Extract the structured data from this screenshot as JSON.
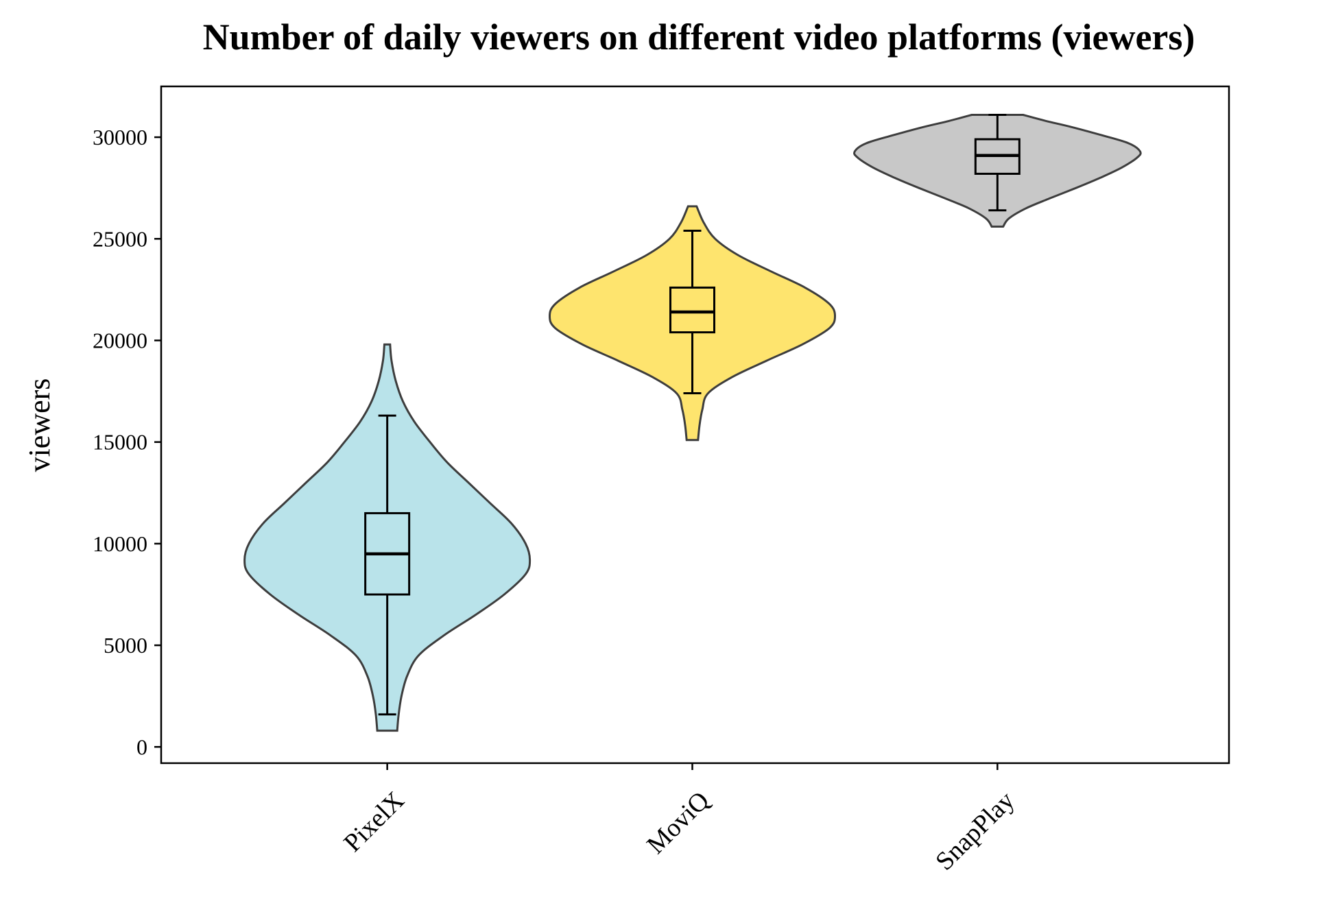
{
  "chart_data": {
    "type": "violin",
    "title": "Number of daily viewers on different video platforms (viewers)",
    "xlabel": "",
    "ylabel": "viewers",
    "ylim": [
      -800,
      32500
    ],
    "yticks": [
      0,
      5000,
      10000,
      15000,
      20000,
      25000,
      30000
    ],
    "grid": false,
    "categories": [
      "PixelX",
      "MoviQ",
      "SnapPlay"
    ],
    "series": [
      {
        "category": "PixelX",
        "color": "#b9e3ea",
        "min": 800,
        "max": 19800,
        "box": {
          "whisker_low": 1600,
          "q1": 7500,
          "median": 9500,
          "q3": 11500,
          "whisker_high": 16300
        },
        "density_profile": [
          [
            800,
            0.07
          ],
          [
            1600,
            0.08
          ],
          [
            2500,
            0.1
          ],
          [
            3500,
            0.14
          ],
          [
            4500,
            0.22
          ],
          [
            5500,
            0.4
          ],
          [
            6500,
            0.62
          ],
          [
            7500,
            0.82
          ],
          [
            8500,
            0.97
          ],
          [
            9200,
            1.0
          ],
          [
            10000,
            0.97
          ],
          [
            11000,
            0.87
          ],
          [
            12000,
            0.72
          ],
          [
            13000,
            0.57
          ],
          [
            14000,
            0.42
          ],
          [
            15000,
            0.3
          ],
          [
            16000,
            0.19
          ],
          [
            17000,
            0.11
          ],
          [
            18000,
            0.06
          ],
          [
            19000,
            0.03
          ],
          [
            19800,
            0.02
          ]
        ]
      },
      {
        "category": "MoviQ",
        "color": "#fee46e",
        "min": 15100,
        "max": 26600,
        "box": {
          "whisker_low": 17400,
          "q1": 20400,
          "median": 21400,
          "q3": 22600,
          "whisker_high": 25400
        },
        "density_profile": [
          [
            15100,
            0.04
          ],
          [
            15800,
            0.05
          ],
          [
            16600,
            0.07
          ],
          [
            17400,
            0.11
          ],
          [
            18200,
            0.28
          ],
          [
            19000,
            0.52
          ],
          [
            19800,
            0.77
          ],
          [
            20600,
            0.96
          ],
          [
            21200,
            1.0
          ],
          [
            21800,
            0.96
          ],
          [
            22600,
            0.79
          ],
          [
            23400,
            0.55
          ],
          [
            24200,
            0.32
          ],
          [
            25000,
            0.16
          ],
          [
            25800,
            0.08
          ],
          [
            26600,
            0.03
          ]
        ]
      },
      {
        "category": "SnapPlay",
        "color": "#c8c8c8",
        "min": 25600,
        "max": 31100,
        "box": {
          "whisker_low": 26400,
          "q1": 28200,
          "median": 29100,
          "q3": 29900,
          "whisker_high": 31100
        },
        "density_profile": [
          [
            25600,
            0.04
          ],
          [
            26000,
            0.08
          ],
          [
            26500,
            0.2
          ],
          [
            27000,
            0.37
          ],
          [
            27500,
            0.55
          ],
          [
            28000,
            0.72
          ],
          [
            28500,
            0.87
          ],
          [
            29000,
            0.98
          ],
          [
            29300,
            1.0
          ],
          [
            29700,
            0.92
          ],
          [
            30100,
            0.73
          ],
          [
            30500,
            0.52
          ],
          [
            30800,
            0.34
          ],
          [
            31100,
            0.18
          ]
        ]
      }
    ]
  }
}
